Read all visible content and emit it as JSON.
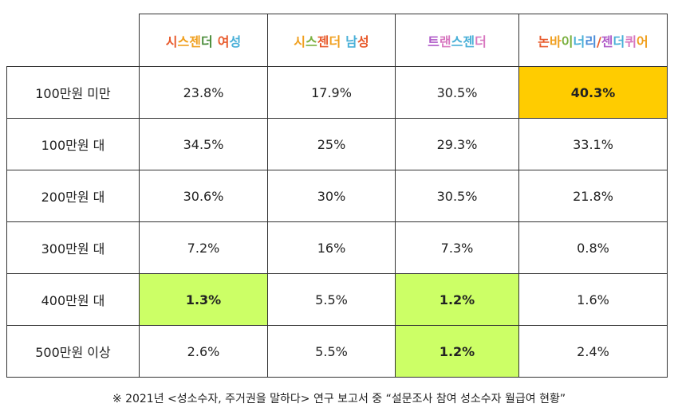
{
  "chart_data": {
    "type": "table",
    "columns": [
      {
        "label": "시스젠더 여성",
        "colors": [
          "#e85a2c",
          "#f0a020",
          "#f0a020",
          "#4a8c3a",
          "#e85a2c",
          "#4ab0d8"
        ]
      },
      {
        "label": "시스젠더 남성",
        "colors": [
          "#f0a020",
          "#7ab040",
          "#e85a2c",
          "#f0a020",
          "#4ab0d8",
          "#e85a2c"
        ]
      },
      {
        "label": "트랜스젠더",
        "colors": [
          "#b05ac8",
          "#d878c0",
          "#4ab0d8",
          "#4ab0d8",
          "#d878c0"
        ]
      },
      {
        "label": "논바이너리/젠더퀴어",
        "colors": [
          "#e85a2c",
          "#f0a020",
          "#7ab040",
          "#4ab0d8",
          "#4a8cd8",
          "#e85a2c",
          "#b05ac8",
          "#4ab0d8",
          "#d878c0",
          "#f0a020",
          "#7ab040"
        ]
      }
    ],
    "rows": [
      {
        "label": "100만원 미만",
        "values": [
          "23.8%",
          "17.9%",
          "30.5%",
          "40.3%"
        ],
        "highlight": [
          null,
          null,
          null,
          "#ffcc00"
        ]
      },
      {
        "label": "100만원 대",
        "values": [
          "34.5%",
          "25%",
          "29.3%",
          "33.1%"
        ],
        "highlight": [
          null,
          null,
          null,
          null
        ]
      },
      {
        "label": "200만원 대",
        "values": [
          "30.6%",
          "30%",
          "30.5%",
          "21.8%"
        ],
        "highlight": [
          null,
          null,
          null,
          null
        ]
      },
      {
        "label": "300만원 대",
        "values": [
          "7.2%",
          "16%",
          "7.3%",
          "0.8%"
        ],
        "highlight": [
          null,
          null,
          null,
          null
        ]
      },
      {
        "label": "400만원 대",
        "values": [
          "1.3%",
          "5.5%",
          "1.2%",
          "1.6%"
        ],
        "highlight": [
          "#ccff66",
          null,
          "#ccff66",
          null
        ]
      },
      {
        "label": "500만원 이상",
        "values": [
          "2.6%",
          "5.5%",
          "1.2%",
          "2.4%"
        ],
        "highlight": [
          null,
          null,
          "#ccff66",
          null
        ]
      }
    ]
  },
  "footnote": "※ 2021년 <성소수자, 주거권을 말하다> 연구 보고서 중 “설문조사 참여 성소수자 월급여 현황”"
}
